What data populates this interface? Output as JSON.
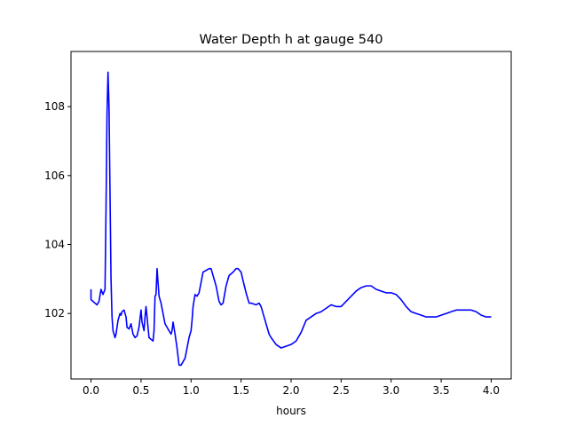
{
  "chart_data": {
    "type": "line",
    "title": "Water Depth h at gauge 540",
    "xlabel": "hours",
    "ylabel": "",
    "xlim": [
      -0.2,
      4.2
    ],
    "ylim": [
      100.1,
      109.6
    ],
    "xticks": [
      0.0,
      0.5,
      1.0,
      1.5,
      2.0,
      2.5,
      3.0,
      3.5,
      4.0
    ],
    "xtick_labels": [
      "0.0",
      "0.5",
      "1.0",
      "1.5",
      "2.0",
      "2.5",
      "3.0",
      "3.5",
      "4.0"
    ],
    "yticks": [
      102,
      104,
      106,
      108
    ],
    "ytick_labels": [
      "102",
      "104",
      "106",
      "108"
    ],
    "grid": false,
    "legend": "none",
    "series": [
      {
        "color": "#0000ff",
        "x": [
          0.0,
          0.0,
          0.02,
          0.04,
          0.06,
          0.08,
          0.1,
          0.12,
          0.14,
          0.15,
          0.16,
          0.17,
          0.18,
          0.19,
          0.2,
          0.21,
          0.22,
          0.24,
          0.25,
          0.27,
          0.29,
          0.3,
          0.31,
          0.33,
          0.35,
          0.36,
          0.38,
          0.4,
          0.42,
          0.44,
          0.46,
          0.48,
          0.5,
          0.51,
          0.53,
          0.54,
          0.55,
          0.56,
          0.58,
          0.6,
          0.62,
          0.63,
          0.64,
          0.65,
          0.66,
          0.67,
          0.68,
          0.7,
          0.72,
          0.74,
          0.76,
          0.78,
          0.8,
          0.81,
          0.82,
          0.84,
          0.86,
          0.88,
          0.9,
          0.92,
          0.94,
          0.96,
          0.98,
          1.0,
          1.01,
          1.02,
          1.04,
          1.06,
          1.08,
          1.1,
          1.12,
          1.15,
          1.18,
          1.2,
          1.22,
          1.25,
          1.28,
          1.3,
          1.32,
          1.35,
          1.38,
          1.4,
          1.42,
          1.45,
          1.47,
          1.5,
          1.52,
          1.55,
          1.58,
          1.6,
          1.65,
          1.68,
          1.7,
          1.72,
          1.75,
          1.78,
          1.8,
          1.85,
          1.9,
          1.95,
          2.0,
          2.05,
          2.1,
          2.15,
          2.2,
          2.25,
          2.3,
          2.35,
          2.4,
          2.45,
          2.5,
          2.55,
          2.6,
          2.65,
          2.7,
          2.75,
          2.8,
          2.85,
          2.9,
          2.95,
          3.0,
          3.05,
          3.1,
          3.15,
          3.2,
          3.25,
          3.3,
          3.35,
          3.4,
          3.45,
          3.5,
          3.55,
          3.6,
          3.65,
          3.7,
          3.75,
          3.8,
          3.85,
          3.9,
          3.95,
          4.0
        ],
        "y": [
          102.7,
          102.4,
          102.35,
          102.3,
          102.25,
          102.35,
          102.7,
          102.55,
          102.7,
          105.0,
          107.8,
          109.0,
          108.0,
          105.5,
          103.0,
          101.9,
          101.5,
          101.3,
          101.4,
          101.8,
          102.0,
          101.95,
          102.05,
          102.1,
          101.9,
          101.6,
          101.55,
          101.7,
          101.4,
          101.3,
          101.35,
          101.6,
          102.1,
          101.75,
          101.5,
          101.9,
          102.2,
          101.9,
          101.3,
          101.25,
          101.2,
          101.5,
          102.5,
          102.55,
          103.3,
          102.9,
          102.5,
          102.3,
          102.0,
          101.7,
          101.6,
          101.5,
          101.4,
          101.5,
          101.75,
          101.4,
          101.0,
          100.5,
          100.5,
          100.6,
          100.7,
          101.0,
          101.3,
          101.5,
          101.8,
          102.2,
          102.55,
          102.5,
          102.6,
          102.9,
          103.2,
          103.25,
          103.3,
          103.3,
          103.1,
          102.8,
          102.35,
          102.25,
          102.3,
          102.8,
          103.1,
          103.15,
          103.2,
          103.3,
          103.3,
          103.2,
          102.95,
          102.6,
          102.3,
          102.3,
          102.25,
          102.3,
          102.2,
          102.0,
          101.7,
          101.4,
          101.3,
          101.1,
          101.0,
          101.05,
          101.1,
          101.2,
          101.45,
          101.8,
          101.9,
          102.0,
          102.05,
          102.15,
          102.25,
          102.2,
          102.2,
          102.35,
          102.5,
          102.65,
          102.75,
          102.8,
          102.8,
          102.7,
          102.65,
          102.6,
          102.6,
          102.55,
          102.4,
          102.2,
          102.05,
          102.0,
          101.95,
          101.9,
          101.9,
          101.9,
          101.95,
          102.0,
          102.05,
          102.1,
          102.1,
          102.1,
          102.1,
          102.05,
          101.95,
          101.9,
          101.9
        ]
      }
    ]
  }
}
